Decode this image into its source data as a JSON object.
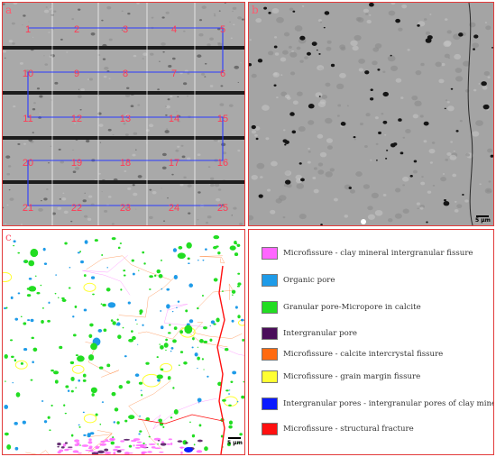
{
  "panels": {
    "a": {
      "label": "a",
      "grid_numbers": [
        "1",
        "2",
        "3",
        "4",
        "5",
        "6",
        "7",
        "8",
        "9",
        "10",
        "11",
        "12",
        "13",
        "14",
        "15",
        "16",
        "17",
        "18",
        "19",
        "20",
        "21",
        "22",
        "23",
        "24",
        "25"
      ]
    },
    "b": {
      "label": "b",
      "scale": "5 μm"
    },
    "c": {
      "label": "c",
      "scale": "5 μm"
    }
  },
  "legend": [
    {
      "label": "Microfissure - clay mineral intergranular fissure",
      "color": "#ff66ff"
    },
    {
      "label": "Organic pore",
      "color": "#1e9be8"
    },
    {
      "label": "Granular pore-Micropore in calcite",
      "color": "#22dd22"
    },
    {
      "label": "Intergranular pore",
      "color": "#4a0d5a"
    },
    {
      "label": "Microfissure - calcite intercrystal fissure",
      "color": "#ff6a10"
    },
    {
      "label": "Microfissure - grain margin fissure",
      "color": "#ffff33"
    },
    {
      "label": "Intergranular pores - intergranular pores of clay minerals",
      "color": "#0a1aff"
    },
    {
      "label": "Microfissure - structural fracture",
      "color": "#ff1010"
    }
  ]
}
